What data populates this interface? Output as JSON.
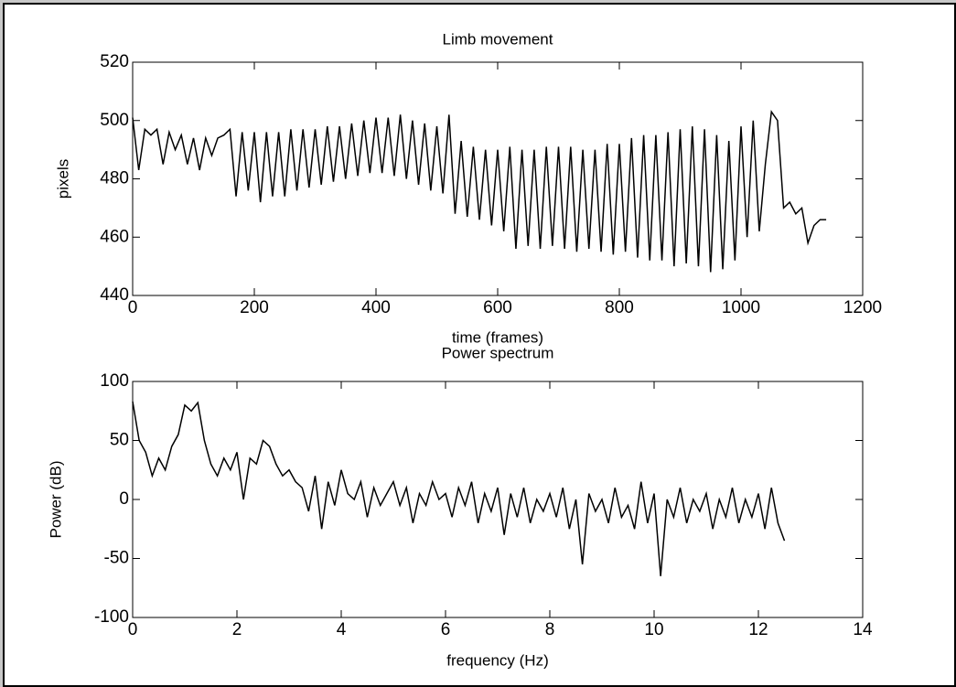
{
  "chart_data": [
    {
      "type": "line",
      "title": "Limb movement",
      "xlabel": "time (frames)",
      "ylabel": "pixels",
      "xlim": [
        0,
        1200
      ],
      "xticks": [
        0,
        200,
        400,
        600,
        800,
        1000,
        1200
      ],
      "ylim": [
        440,
        520
      ],
      "yticks": [
        440,
        460,
        480,
        500,
        520
      ],
      "color": "#000000",
      "x": [
        0,
        10,
        20,
        30,
        40,
        50,
        60,
        70,
        80,
        90,
        100,
        110,
        120,
        130,
        140,
        150,
        160,
        170,
        180,
        190,
        200,
        210,
        220,
        230,
        240,
        250,
        260,
        270,
        280,
        290,
        300,
        310,
        320,
        330,
        340,
        350,
        360,
        370,
        380,
        390,
        400,
        410,
        420,
        430,
        440,
        450,
        460,
        470,
        480,
        490,
        500,
        510,
        520,
        530,
        540,
        550,
        560,
        570,
        580,
        590,
        600,
        610,
        620,
        630,
        640,
        650,
        660,
        670,
        680,
        690,
        700,
        710,
        720,
        730,
        740,
        750,
        760,
        770,
        780,
        790,
        800,
        810,
        820,
        830,
        840,
        850,
        860,
        870,
        880,
        890,
        900,
        910,
        920,
        930,
        940,
        950,
        960,
        970,
        980,
        990,
        1000,
        1010,
        1020,
        1030,
        1040,
        1050,
        1060,
        1070,
        1080,
        1090,
        1100,
        1110,
        1120,
        1130,
        1140
      ],
      "values": [
        501,
        483,
        497,
        495,
        497,
        485,
        496,
        490,
        495,
        485,
        494,
        483,
        494,
        488,
        494,
        495,
        497,
        474,
        496,
        476,
        496,
        472,
        496,
        474,
        496,
        474,
        497,
        476,
        497,
        477,
        497,
        478,
        498,
        479,
        498,
        480,
        499,
        481,
        500,
        482,
        501,
        482,
        501,
        481,
        502,
        480,
        500,
        478,
        499,
        476,
        498,
        475,
        502,
        468,
        493,
        467,
        491,
        466,
        490,
        464,
        490,
        462,
        491,
        456,
        490,
        457,
        490,
        456,
        491,
        457,
        491,
        456,
        491,
        455,
        490,
        456,
        490,
        455,
        492,
        454,
        492,
        455,
        494,
        453,
        495,
        452,
        495,
        452,
        496,
        450,
        497,
        451,
        498,
        450,
        497,
        448,
        495,
        449,
        493,
        452,
        498,
        460,
        500,
        462,
        485,
        503,
        500,
        470,
        472,
        468,
        470,
        458,
        464,
        466,
        466
      ]
    },
    {
      "type": "line",
      "title": "Power spectrum",
      "xlabel": "frequency (Hz)",
      "ylabel": "Power (dB)",
      "xlim": [
        0,
        14
      ],
      "xticks": [
        0,
        2,
        4,
        6,
        8,
        10,
        12,
        14
      ],
      "ylim": [
        -100,
        100
      ],
      "yticks": [
        -100,
        -50,
        0,
        50,
        100
      ],
      "color": "#000000",
      "x": [
        0,
        0.125,
        0.25,
        0.375,
        0.5,
        0.625,
        0.75,
        0.875,
        1.0,
        1.125,
        1.25,
        1.375,
        1.5,
        1.625,
        1.75,
        1.875,
        2.0,
        2.125,
        2.25,
        2.375,
        2.5,
        2.625,
        2.75,
        2.875,
        3.0,
        3.125,
        3.25,
        3.375,
        3.5,
        3.625,
        3.75,
        3.875,
        4.0,
        4.125,
        4.25,
        4.375,
        4.5,
        4.625,
        4.75,
        4.875,
        5.0,
        5.125,
        5.25,
        5.375,
        5.5,
        5.625,
        5.75,
        5.875,
        6.0,
        6.125,
        6.25,
        6.375,
        6.5,
        6.625,
        6.75,
        6.875,
        7.0,
        7.125,
        7.25,
        7.375,
        7.5,
        7.625,
        7.75,
        7.875,
        8.0,
        8.125,
        8.25,
        8.375,
        8.5,
        8.625,
        8.75,
        8.875,
        9.0,
        9.125,
        9.25,
        9.375,
        9.5,
        9.625,
        9.75,
        9.875,
        10.0,
        10.125,
        10.25,
        10.375,
        10.5,
        10.625,
        10.75,
        10.875,
        11.0,
        11.125,
        11.25,
        11.375,
        11.5,
        11.625,
        11.75,
        11.875,
        12.0,
        12.125,
        12.25,
        12.375,
        12.5
      ],
      "values": [
        83,
        50,
        40,
        20,
        35,
        25,
        45,
        55,
        80,
        75,
        82,
        50,
        30,
        20,
        35,
        25,
        40,
        0,
        35,
        30,
        50,
        45,
        30,
        20,
        25,
        15,
        10,
        -10,
        20,
        -25,
        15,
        -5,
        25,
        5,
        0,
        15,
        -15,
        10,
        -5,
        5,
        15,
        -5,
        10,
        -20,
        5,
        -5,
        15,
        0,
        5,
        -15,
        10,
        -5,
        15,
        -20,
        5,
        -10,
        10,
        -30,
        5,
        -15,
        10,
        -20,
        0,
        -10,
        5,
        -15,
        10,
        -25,
        0,
        -55,
        5,
        -10,
        0,
        -20,
        10,
        -15,
        -5,
        -25,
        15,
        -20,
        5,
        -65,
        0,
        -15,
        10,
        -20,
        0,
        -10,
        5,
        -25,
        0,
        -15,
        10,
        -20,
        0,
        -15,
        5,
        -25,
        10,
        -20,
        -35
      ]
    }
  ]
}
